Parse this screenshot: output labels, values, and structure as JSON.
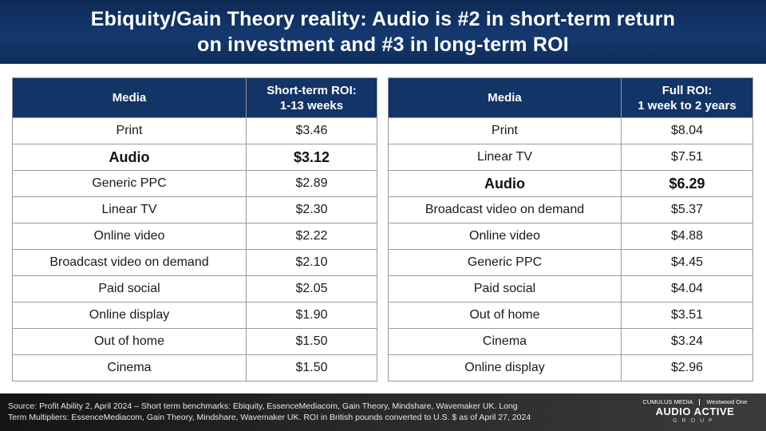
{
  "header": {
    "title_line1": "Ebiquity/Gain Theory reality: Audio is #2 in short-term return",
    "title_line2": "on investment and #3 in long-term ROI"
  },
  "left_table": {
    "col1_header": "Media",
    "col2_header_line1": "Short-term ROI:",
    "col2_header_line2": "1-13 weeks",
    "rows": [
      {
        "media": "Print",
        "value": "$3.46"
      },
      {
        "media": "Audio",
        "value": "$3.12",
        "highlight": true
      },
      {
        "media": "Generic PPC",
        "value": "$2.89"
      },
      {
        "media": "Linear TV",
        "value": "$2.30"
      },
      {
        "media": "Online video",
        "value": "$2.22"
      },
      {
        "media": "Broadcast video on demand",
        "value": "$2.10"
      },
      {
        "media": "Paid social",
        "value": "$2.05"
      },
      {
        "media": "Online display",
        "value": "$1.90"
      },
      {
        "media": "Out of home",
        "value": "$1.50"
      },
      {
        "media": "Cinema",
        "value": "$1.50"
      }
    ]
  },
  "right_table": {
    "col1_header": "Media",
    "col2_header_line1": "Full ROI:",
    "col2_header_line2": "1 week to 2 years",
    "rows": [
      {
        "media": "Print",
        "value": "$8.04"
      },
      {
        "media": "Linear TV",
        "value": "$7.51"
      },
      {
        "media": "Audio",
        "value": "$6.29",
        "highlight": true
      },
      {
        "media": "Broadcast video on demand",
        "value": "$5.37"
      },
      {
        "media": "Online video",
        "value": "$4.88"
      },
      {
        "media": "Generic PPC",
        "value": "$4.45"
      },
      {
        "media": "Paid social",
        "value": "$4.04"
      },
      {
        "media": "Out of home",
        "value": "$3.51"
      },
      {
        "media": "Cinema",
        "value": "$3.24"
      },
      {
        "media": "Online display",
        "value": "$2.96"
      }
    ]
  },
  "footer": {
    "source_line1": "Source: Profit Ability 2, April 2024 – Short term benchmarks: Ebiquity, EssenceMediacom, Gain Theory, Mindshare, Wavemaker UK. Long",
    "source_line2": "Term Multipliers: EssenceMediacom, Gain Theory, Mindshare, Wavemaker UK. ROI in British pounds converted to U.S. $ as of April 27, 2024",
    "logo_top_left": "CUMULUS MEDIA",
    "logo_top_right": "Westwood One",
    "logo_main": "AUDIO ACTIVE",
    "logo_sub": "GROUP"
  }
}
